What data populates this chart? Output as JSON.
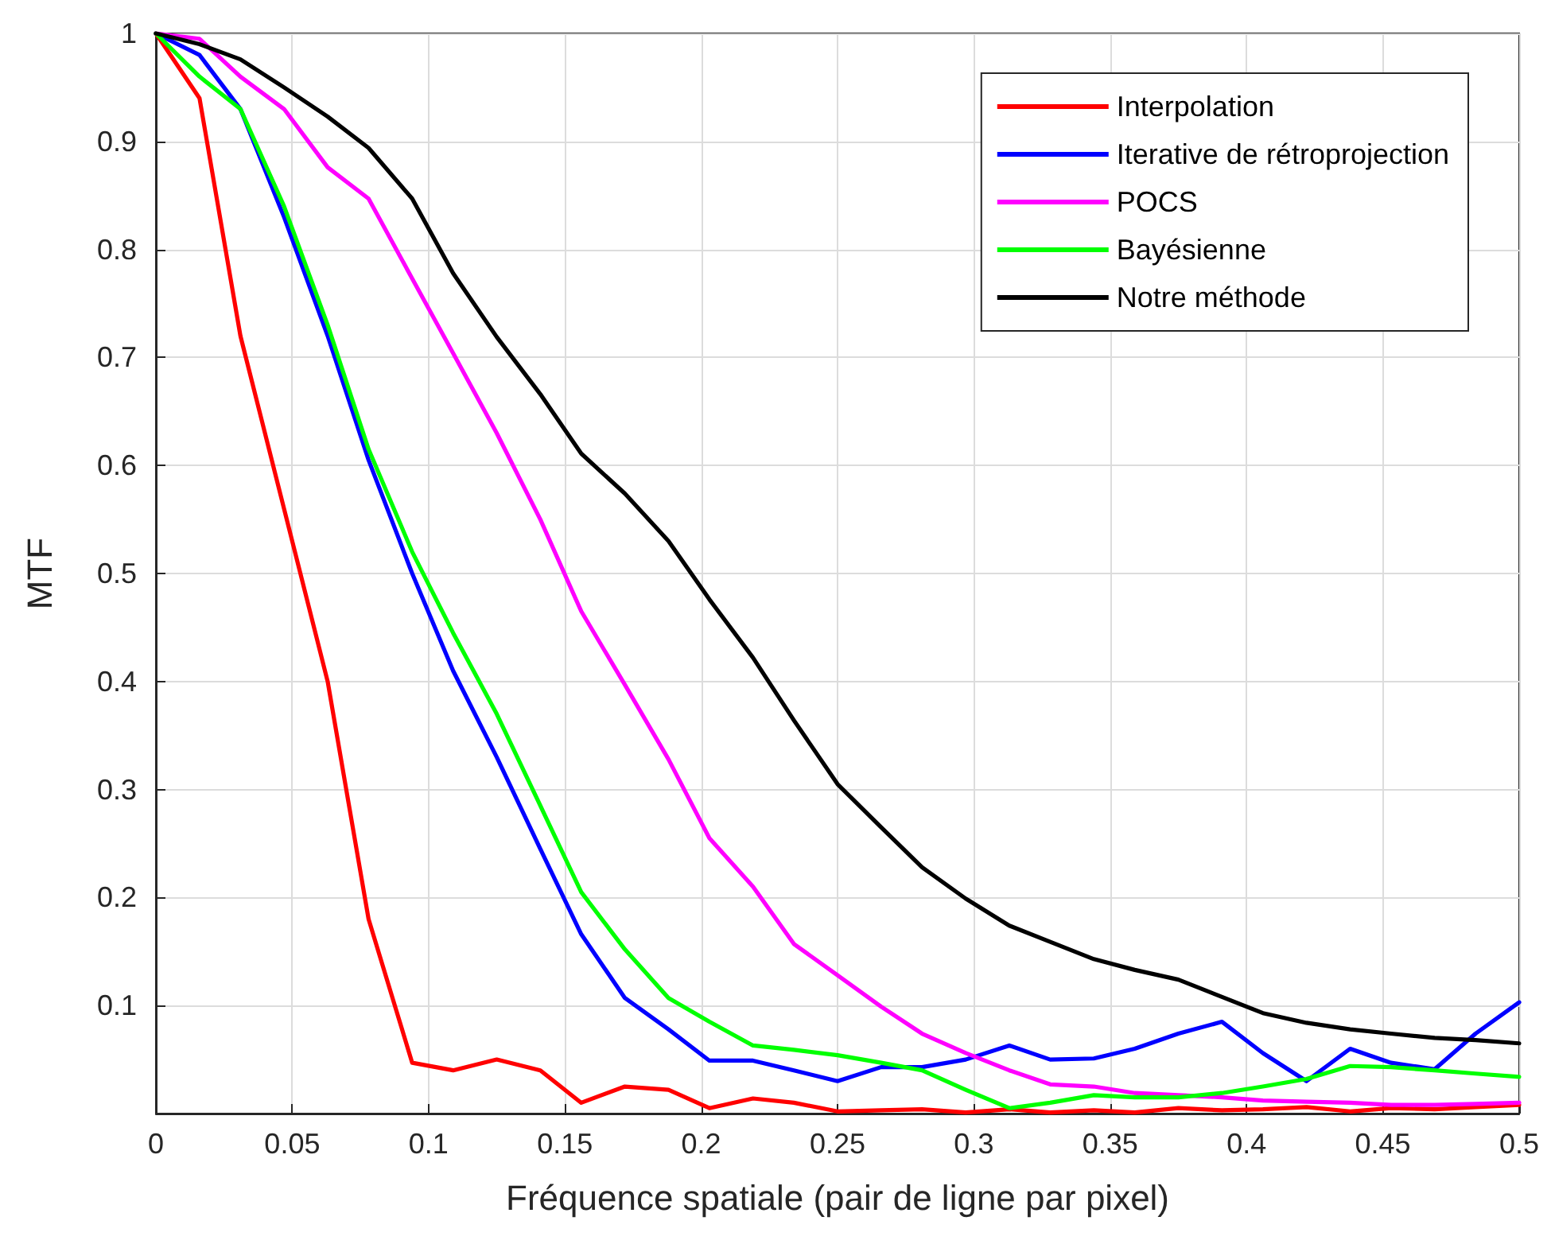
{
  "chart_data": {
    "type": "line",
    "xlabel": "Fréquence spatiale (pair de ligne par pixel)",
    "ylabel": "MTF",
    "x": [
      0,
      0.016,
      0.031,
      0.047,
      0.063,
      0.078,
      0.094,
      0.109,
      0.125,
      0.141,
      0.156,
      0.172,
      0.188,
      0.203,
      0.219,
      0.234,
      0.25,
      0.266,
      0.281,
      0.297,
      0.313,
      0.328,
      0.344,
      0.359,
      0.375,
      0.391,
      0.406,
      0.422,
      0.438,
      0.453,
      0.469,
      0.484,
      0.5
    ],
    "series": [
      {
        "name": "Interpolation",
        "color": "#ff0000",
        "values": [
          1,
          0.94,
          0.72,
          0.56,
          0.4,
          0.18,
          0.047,
          0.04,
          0.05,
          0.04,
          0.01,
          0.025,
          0.022,
          0.005,
          0.014,
          0.01,
          0.002,
          0.003,
          0.004,
          0.001,
          0.004,
          0.001,
          0.003,
          0.001,
          0.005,
          0.003,
          0.004,
          0.006,
          0.002,
          0.005,
          0.004,
          0.006,
          0.008
        ]
      },
      {
        "name": "Iterative de rétroprojection",
        "color": "#0000ff",
        "values": [
          1,
          0.98,
          0.93,
          0.83,
          0.72,
          0.605,
          0.5,
          0.41,
          0.33,
          0.245,
          0.166,
          0.107,
          0.078,
          0.049,
          0.049,
          0.04,
          0.03,
          0.043,
          0.043,
          0.05,
          0.063,
          0.05,
          0.051,
          0.06,
          0.074,
          0.085,
          0.056,
          0.03,
          0.06,
          0.047,
          0.041,
          0.074,
          0.103
        ]
      },
      {
        "name": "POCS",
        "color": "#ff00ff",
        "values": [
          1,
          0.995,
          0.96,
          0.93,
          0.876,
          0.847,
          0.773,
          0.704,
          0.63,
          0.55,
          0.465,
          0.397,
          0.328,
          0.255,
          0.21,
          0.157,
          0.128,
          0.099,
          0.074,
          0.056,
          0.04,
          0.027,
          0.025,
          0.019,
          0.017,
          0.015,
          0.012,
          0.011,
          0.01,
          0.008,
          0.008,
          0.009,
          0.01
        ]
      },
      {
        "name": "Bayésienne",
        "color": "#00ff00",
        "values": [
          1,
          0.96,
          0.93,
          0.84,
          0.73,
          0.615,
          0.52,
          0.445,
          0.37,
          0.285,
          0.205,
          0.152,
          0.107,
          0.085,
          0.063,
          0.059,
          0.054,
          0.047,
          0.04,
          0.022,
          0.005,
          0.01,
          0.017,
          0.015,
          0.015,
          0.019,
          0.025,
          0.032,
          0.044,
          0.043,
          0.04,
          0.037,
          0.034
        ]
      },
      {
        "name": "Notre méthode",
        "color": "#000000",
        "values": [
          1,
          0.99,
          0.976,
          0.95,
          0.923,
          0.894,
          0.847,
          0.778,
          0.719,
          0.666,
          0.611,
          0.574,
          0.53,
          0.476,
          0.422,
          0.364,
          0.305,
          0.265,
          0.228,
          0.199,
          0.174,
          0.159,
          0.143,
          0.133,
          0.124,
          0.108,
          0.093,
          0.084,
          0.078,
          0.074,
          0.07,
          0.068,
          0.065
        ]
      }
    ],
    "xlim": [
      0,
      0.5
    ],
    "xticks": [
      0,
      0.05,
      0.1,
      0.15,
      0.2,
      0.25,
      0.3,
      0.35,
      0.4,
      0.45,
      0.5
    ],
    "ylim": [
      0,
      1
    ],
    "yticks": [
      {
        "value": 0,
        "label": null
      },
      0.1,
      0.2,
      0.3,
      0.4,
      0.5,
      0.6,
      0.7,
      0.8,
      0.9,
      1
    ],
    "grid": true,
    "legend": "top right",
    "marker": "none",
    "line_style": "solid"
  }
}
